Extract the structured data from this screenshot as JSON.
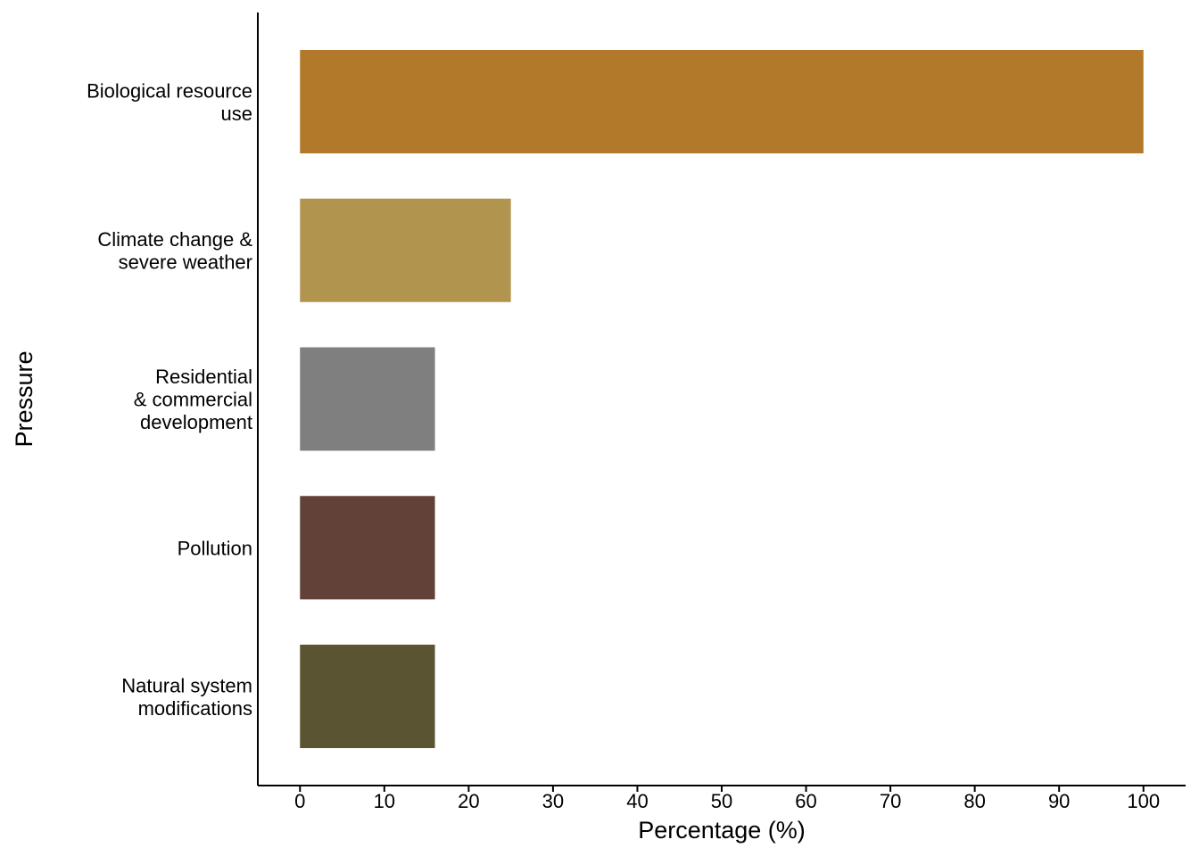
{
  "chart_data": {
    "type": "bar",
    "orientation": "horizontal",
    "title": "",
    "xlabel": "Percentage (%)",
    "ylabel": "Pressure",
    "xlim": [
      -5,
      105
    ],
    "xticks": [
      0,
      10,
      20,
      30,
      40,
      50,
      60,
      70,
      80,
      90,
      100
    ],
    "grid": false,
    "legend": "none",
    "categories": [
      {
        "lines": [
          "Biological resource",
          "use"
        ],
        "value": 100,
        "color": "#b2792b"
      },
      {
        "lines": [
          "Climate change &",
          "severe weather"
        ],
        "value": 25,
        "color": "#b1944e"
      },
      {
        "lines": [
          "Residential",
          "& commercial",
          "development"
        ],
        "value": 16,
        "color": "#7f7f7f"
      },
      {
        "lines": [
          "Pollution"
        ],
        "value": 16,
        "color": "#624238"
      },
      {
        "lines": [
          "Natural system",
          "modifications"
        ],
        "value": 16,
        "color": "#5a5433"
      }
    ]
  }
}
